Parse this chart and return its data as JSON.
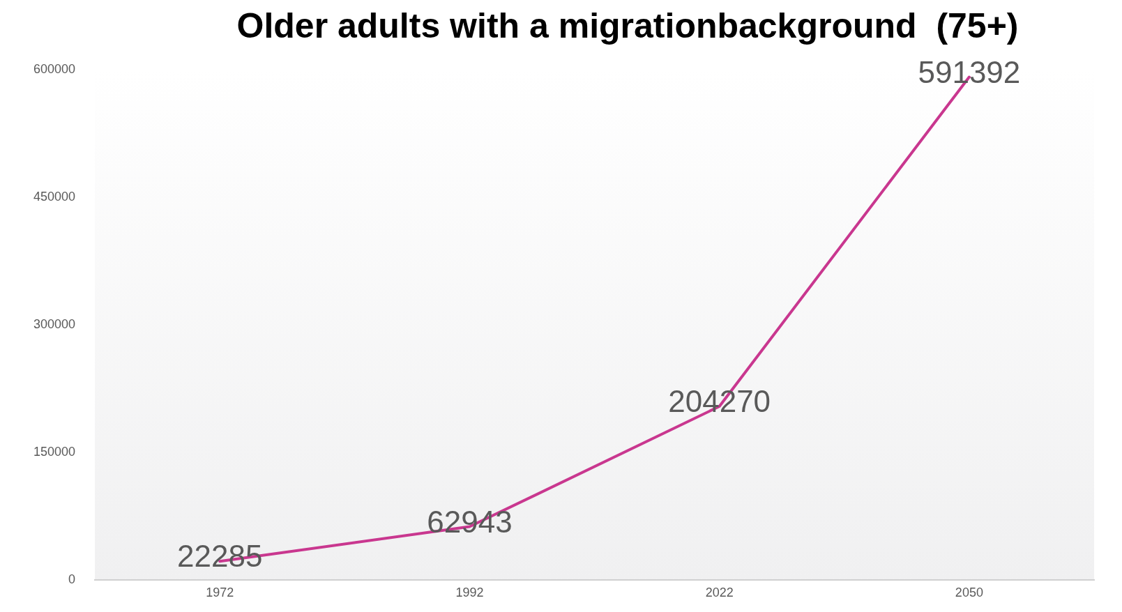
{
  "chart_data": {
    "type": "line",
    "title": "Older adults with a migrationbackground  (75+)",
    "categories": [
      "1972",
      "1992",
      "2022",
      "2050"
    ],
    "series": [
      {
        "color": "#c9378f",
        "values": [
          22285,
          62943,
          204270,
          591392
        ]
      }
    ],
    "ylim": [
      0,
      600000
    ],
    "yticks": [
      0,
      150000,
      300000,
      450000,
      600000
    ],
    "grid": false,
    "legend": false,
    "data_labels": true,
    "marker": "none",
    "line_style": "solid"
  }
}
